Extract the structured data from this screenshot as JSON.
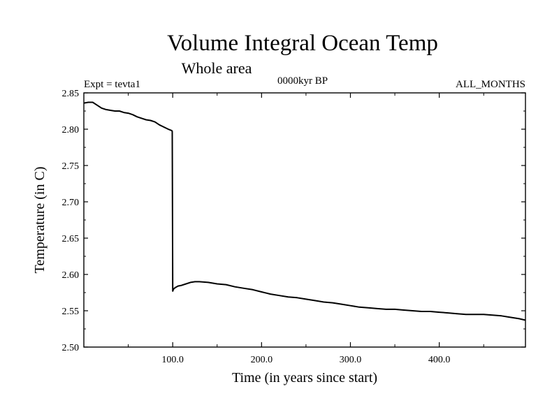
{
  "chart_data": {
    "type": "line",
    "title": "Volume Integral Ocean Temp",
    "subtitle": "Whole area",
    "experiment_label": "Expt = tevta1",
    "period_label": "0000kyr BP",
    "months_label": "ALL_MONTHS",
    "xlabel": "Time (in years since start)",
    "ylabel": "Temperature (in C)",
    "xlim": [
      0,
      497
    ],
    "ylim": [
      2.5,
      2.85
    ],
    "xticks": [
      100,
      200,
      300,
      400
    ],
    "xtick_labels": [
      "100.0",
      "200.0",
      "300.0",
      "400.0"
    ],
    "yticks": [
      2.5,
      2.55,
      2.6,
      2.65,
      2.7,
      2.75,
      2.8,
      2.85
    ],
    "ytick_labels": [
      "2.50",
      "2.55",
      "2.60",
      "2.65",
      "2.70",
      "2.75",
      "2.80",
      "2.85"
    ],
    "grid": false,
    "line_color": "#000000",
    "series": [
      {
        "name": "tevta1",
        "x": [
          0,
          5,
          10,
          15,
          20,
          25,
          30,
          35,
          40,
          45,
          50,
          55,
          60,
          65,
          70,
          75,
          80,
          85,
          90,
          95,
          99,
          99.5,
          100,
          101,
          103,
          106,
          110,
          115,
          120,
          125,
          130,
          140,
          150,
          160,
          170,
          180,
          190,
          200,
          210,
          220,
          230,
          240,
          250,
          260,
          270,
          280,
          290,
          300,
          310,
          320,
          330,
          340,
          350,
          360,
          370,
          380,
          390,
          400,
          410,
          420,
          430,
          440,
          450,
          460,
          470,
          480,
          490,
          497
        ],
        "values": [
          2.836,
          2.837,
          2.837,
          2.833,
          2.829,
          2.827,
          2.826,
          2.825,
          2.825,
          2.823,
          2.822,
          2.82,
          2.817,
          2.815,
          2.813,
          2.812,
          2.81,
          2.806,
          2.803,
          2.8,
          2.798,
          2.797,
          2.577,
          2.58,
          2.582,
          2.584,
          2.585,
          2.587,
          2.589,
          2.59,
          2.59,
          2.589,
          2.587,
          2.586,
          2.583,
          2.581,
          2.579,
          2.576,
          2.573,
          2.571,
          2.569,
          2.568,
          2.566,
          2.564,
          2.562,
          2.561,
          2.559,
          2.557,
          2.555,
          2.554,
          2.553,
          2.552,
          2.552,
          2.551,
          2.55,
          2.549,
          2.549,
          2.548,
          2.547,
          2.546,
          2.545,
          2.545,
          2.545,
          2.544,
          2.543,
          2.541,
          2.539,
          2.537
        ]
      }
    ]
  }
}
